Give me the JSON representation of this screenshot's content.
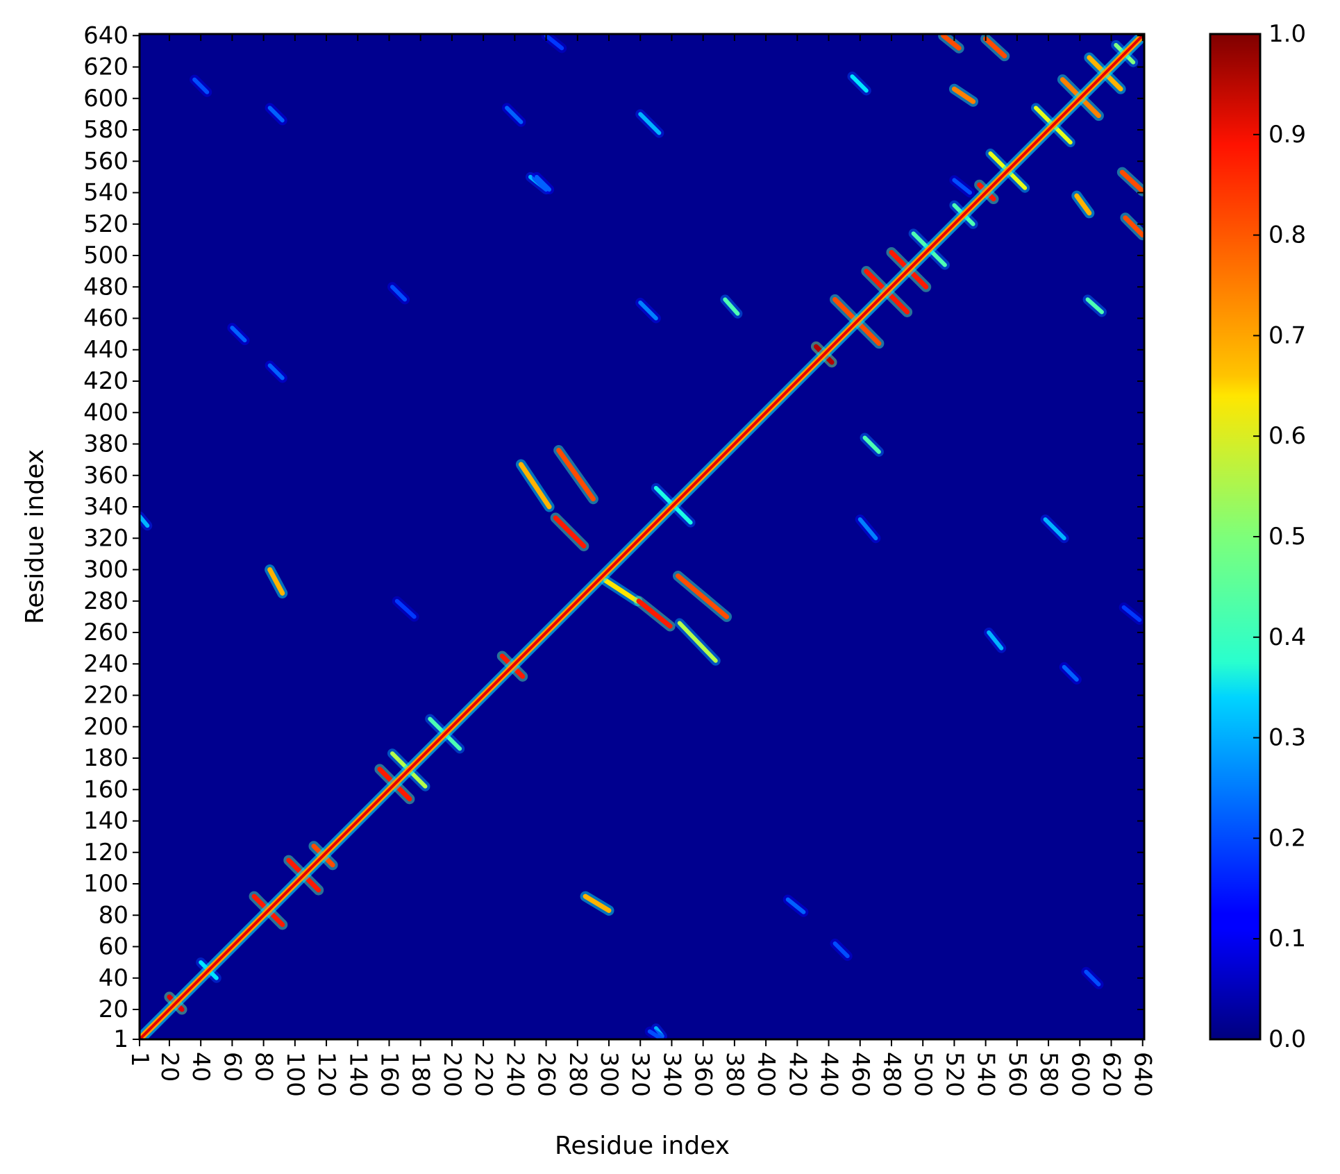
{
  "chart_data": {
    "type": "heatmap",
    "title": "",
    "xlabel": "Residue index",
    "ylabel": "Residue index",
    "xlim": [
      1,
      641
    ],
    "ylim": [
      1,
      641
    ],
    "x_ticks": [
      1,
      20,
      40,
      60,
      80,
      100,
      120,
      140,
      160,
      180,
      200,
      220,
      240,
      260,
      280,
      300,
      320,
      340,
      360,
      380,
      400,
      420,
      440,
      460,
      480,
      500,
      520,
      540,
      560,
      580,
      600,
      620,
      640
    ],
    "y_ticks": [
      1,
      20,
      40,
      60,
      80,
      100,
      120,
      140,
      160,
      180,
      200,
      220,
      240,
      260,
      280,
      300,
      320,
      340,
      360,
      380,
      400,
      420,
      440,
      460,
      480,
      500,
      520,
      540,
      560,
      580,
      600,
      620,
      640
    ],
    "x_tick_rotation": "vertical",
    "colormap": "jet",
    "colorbar": {
      "vmin": 0.0,
      "vmax": 1.0,
      "ticks": [
        "0.0",
        "0.1",
        "0.2",
        "0.3",
        "0.4",
        "0.5",
        "0.6",
        "0.7",
        "0.8",
        "0.9",
        "1.0"
      ],
      "placement": "right"
    },
    "background_value": 0.02,
    "diagonal": {
      "from": 1,
      "to": 640,
      "value": 0.9
    },
    "features": [
      {
        "kind": "anti",
        "x0": 74,
        "y0": 92,
        "x1": 92,
        "y1": 74,
        "value": 0.85
      },
      {
        "kind": "anti",
        "x0": 96,
        "y0": 115,
        "x1": 115,
        "y1": 96,
        "value": 0.85
      },
      {
        "kind": "anti",
        "x0": 112,
        "y0": 124,
        "x1": 124,
        "y1": 112,
        "value": 0.8
      },
      {
        "kind": "anti",
        "x0": 154,
        "y0": 173,
        "x1": 173,
        "y1": 154,
        "value": 0.85
      },
      {
        "kind": "anti",
        "x0": 162,
        "y0": 183,
        "x1": 183,
        "y1": 162,
        "value": 0.55
      },
      {
        "kind": "anti",
        "x0": 186,
        "y0": 205,
        "x1": 205,
        "y1": 186,
        "value": 0.45
      },
      {
        "kind": "anti",
        "x0": 232,
        "y0": 245,
        "x1": 245,
        "y1": 232,
        "value": 0.85
      },
      {
        "kind": "anti",
        "x0": 244,
        "y0": 367,
        "x1": 262,
        "y1": 340,
        "value": 0.7
      },
      {
        "kind": "anti",
        "x0": 268,
        "y0": 376,
        "x1": 290,
        "y1": 345,
        "value": 0.8
      },
      {
        "kind": "anti",
        "x0": 266,
        "y0": 333,
        "x1": 284,
        "y1": 315,
        "value": 0.85
      },
      {
        "kind": "anti",
        "x0": 298,
        "y0": 293,
        "x1": 318,
        "y1": 280,
        "value": 0.65
      },
      {
        "kind": "anti",
        "x0": 319,
        "y0": 280,
        "x1": 339,
        "y1": 264,
        "value": 0.85
      },
      {
        "kind": "anti",
        "x0": 344,
        "y0": 296,
        "x1": 375,
        "y1": 270,
        "value": 0.8
      },
      {
        "kind": "anti",
        "x0": 345,
        "y0": 266,
        "x1": 368,
        "y1": 242,
        "value": 0.55
      },
      {
        "kind": "anti",
        "x0": 330,
        "y0": 352,
        "x1": 352,
        "y1": 330,
        "value": 0.4
      },
      {
        "kind": "anti",
        "x0": 432,
        "y0": 442,
        "x1": 442,
        "y1": 432,
        "value": 0.95
      },
      {
        "kind": "anti",
        "x0": 444,
        "y0": 472,
        "x1": 472,
        "y1": 444,
        "value": 0.8
      },
      {
        "kind": "anti",
        "x0": 464,
        "y0": 490,
        "x1": 490,
        "y1": 464,
        "value": 0.85
      },
      {
        "kind": "anti",
        "x0": 480,
        "y0": 502,
        "x1": 502,
        "y1": 480,
        "value": 0.85
      },
      {
        "kind": "anti",
        "x0": 494,
        "y0": 514,
        "x1": 514,
        "y1": 494,
        "value": 0.45
      },
      {
        "kind": "anti",
        "x0": 520,
        "y0": 532,
        "x1": 532,
        "y1": 520,
        "value": 0.45
      },
      {
        "kind": "anti",
        "x0": 536,
        "y0": 545,
        "x1": 545,
        "y1": 536,
        "value": 0.85
      },
      {
        "kind": "anti",
        "x0": 543,
        "y0": 565,
        "x1": 565,
        "y1": 543,
        "value": 0.6
      },
      {
        "kind": "anti",
        "x0": 572,
        "y0": 594,
        "x1": 594,
        "y1": 572,
        "value": 0.6
      },
      {
        "kind": "anti",
        "x0": 589,
        "y0": 612,
        "x1": 612,
        "y1": 589,
        "value": 0.75
      },
      {
        "kind": "anti",
        "x0": 606,
        "y0": 626,
        "x1": 626,
        "y1": 606,
        "value": 0.7
      },
      {
        "kind": "anti",
        "x0": 623,
        "y0": 634,
        "x1": 634,
        "y1": 623,
        "value": 0.5
      },
      {
        "kind": "anti",
        "x0": 40,
        "y0": 50,
        "x1": 50,
        "y1": 40,
        "value": 0.35
      },
      {
        "kind": "anti",
        "x0": 20,
        "y0": 28,
        "x1": 28,
        "y1": 20,
        "value": 0.9
      },
      {
        "kind": "par",
        "x0": 84,
        "y0": 300,
        "x1": 92,
        "y1": 285,
        "value": 0.7
      },
      {
        "kind": "par",
        "x0": 285,
        "y0": 92,
        "x1": 300,
        "y1": 83,
        "value": 0.7
      },
      {
        "kind": "par",
        "x0": 513,
        "y0": 640,
        "x1": 523,
        "y1": 632,
        "value": 0.8
      },
      {
        "kind": "par",
        "x0": 540,
        "y0": 638,
        "x1": 552,
        "y1": 627,
        "value": 0.8
      },
      {
        "kind": "par",
        "x0": 520,
        "y0": 606,
        "x1": 532,
        "y1": 598,
        "value": 0.75
      },
      {
        "kind": "par",
        "x0": 627,
        "y0": 553,
        "x1": 640,
        "y1": 541,
        "value": 0.8
      },
      {
        "kind": "par",
        "x0": 629,
        "y0": 524,
        "x1": 640,
        "y1": 513,
        "value": 0.8
      },
      {
        "kind": "par",
        "x0": 598,
        "y0": 538,
        "x1": 606,
        "y1": 527,
        "value": 0.7
      },
      {
        "kind": "par",
        "x0": 455,
        "y0": 614,
        "x1": 464,
        "y1": 605,
        "value": 0.35
      },
      {
        "kind": "par",
        "x0": 605,
        "y0": 472,
        "x1": 614,
        "y1": 464,
        "value": 0.45
      },
      {
        "kind": "par",
        "x0": 374,
        "y0": 472,
        "x1": 382,
        "y1": 463,
        "value": 0.45
      },
      {
        "kind": "par",
        "x0": 463,
        "y0": 384,
        "x1": 472,
        "y1": 375,
        "value": 0.45
      },
      {
        "kind": "par",
        "x0": 320,
        "y0": 590,
        "x1": 332,
        "y1": 578,
        "value": 0.3
      },
      {
        "kind": "par",
        "x0": 578,
        "y0": 332,
        "x1": 590,
        "y1": 320,
        "value": 0.3
      },
      {
        "kind": "par",
        "x0": 250,
        "y0": 550,
        "x1": 260,
        "y1": 542,
        "value": 0.3
      },
      {
        "kind": "par",
        "x0": 542,
        "y0": 260,
        "x1": 550,
        "y1": 250,
        "value": 0.3
      },
      {
        "kind": "par",
        "x0": 320,
        "y0": 470,
        "x1": 330,
        "y1": 460,
        "value": 0.25
      },
      {
        "kind": "par",
        "x0": 460,
        "y0": 332,
        "x1": 470,
        "y1": 320,
        "value": 0.25
      },
      {
        "kind": "par",
        "x0": 330,
        "y0": 8,
        "x1": 334,
        "y1": 3,
        "value": 0.3
      },
      {
        "kind": "par",
        "x0": 1,
        "y0": 334,
        "x1": 6,
        "y1": 328,
        "value": 0.3
      },
      {
        "kind": "par",
        "x0": 36,
        "y0": 612,
        "x1": 44,
        "y1": 604,
        "value": 0.2
      },
      {
        "kind": "par",
        "x0": 604,
        "y0": 44,
        "x1": 612,
        "y1": 36,
        "value": 0.2
      },
      {
        "kind": "par",
        "x0": 84,
        "y0": 594,
        "x1": 92,
        "y1": 586,
        "value": 0.22
      },
      {
        "kind": "par",
        "x0": 235,
        "y0": 594,
        "x1": 244,
        "y1": 585,
        "value": 0.22
      },
      {
        "kind": "par",
        "x0": 254,
        "y0": 550,
        "x1": 262,
        "y1": 542,
        "value": 0.22
      },
      {
        "kind": "par",
        "x0": 60,
        "y0": 454,
        "x1": 68,
        "y1": 446,
        "value": 0.22
      },
      {
        "kind": "par",
        "x0": 84,
        "y0": 430,
        "x1": 92,
        "y1": 422,
        "value": 0.22
      },
      {
        "kind": "par",
        "x0": 162,
        "y0": 480,
        "x1": 170,
        "y1": 472,
        "value": 0.2
      },
      {
        "kind": "par",
        "x0": 165,
        "y0": 280,
        "x1": 176,
        "y1": 270,
        "value": 0.18
      },
      {
        "kind": "par",
        "x0": 414,
        "y0": 90,
        "x1": 424,
        "y1": 82,
        "value": 0.22
      },
      {
        "kind": "par",
        "x0": 444,
        "y0": 62,
        "x1": 452,
        "y1": 54,
        "value": 0.2
      },
      {
        "kind": "par",
        "x0": 590,
        "y0": 238,
        "x1": 598,
        "y1": 230,
        "value": 0.22
      },
      {
        "kind": "par",
        "x0": 520,
        "y0": 548,
        "x1": 530,
        "y1": 540,
        "value": 0.2
      },
      {
        "kind": "par",
        "x0": 628,
        "y0": 276,
        "x1": 638,
        "y1": 268,
        "value": 0.18
      },
      {
        "kind": "par",
        "x0": 260,
        "y0": 640,
        "x1": 270,
        "y1": 632,
        "value": 0.18
      },
      {
        "kind": "par",
        "x0": 326,
        "y0": 6,
        "x1": 334,
        "y1": 1,
        "value": 0.2
      }
    ]
  }
}
